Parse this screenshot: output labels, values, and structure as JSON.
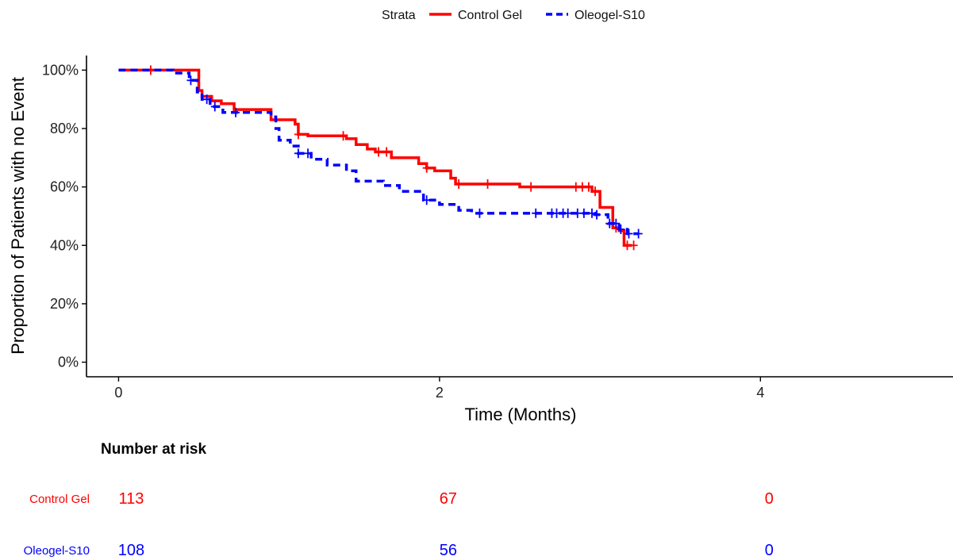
{
  "chart_data": {
    "type": "line",
    "subtype": "kaplan-meier step curve",
    "xlabel": "Time (Months)",
    "ylabel": "Proportion of Patients with no Event",
    "xlim": [
      -0.2,
      5.2
    ],
    "ylim": [
      -0.05,
      1.05
    ],
    "x_ticks": [
      0,
      2,
      4
    ],
    "x_tick_labels": [
      "0",
      "2",
      "4"
    ],
    "y_ticks": [
      0,
      0.2,
      0.4,
      0.6,
      0.8,
      1.0
    ],
    "y_tick_labels": [
      "0%",
      "20%",
      "40%",
      "60%",
      "80%",
      "100%"
    ],
    "grid": false,
    "legend": {
      "position": "top",
      "title": "Strata"
    },
    "series": [
      {
        "name": "Control Gel",
        "color": "#ff0000",
        "line_style": "solid",
        "steps": [
          [
            0,
            1.0
          ],
          [
            0.5,
            0.93
          ],
          [
            0.52,
            0.91
          ],
          [
            0.58,
            0.895
          ],
          [
            0.64,
            0.885
          ],
          [
            0.72,
            0.865
          ],
          [
            0.95,
            0.83
          ],
          [
            1.1,
            0.815
          ],
          [
            1.12,
            0.78
          ],
          [
            1.18,
            0.775
          ],
          [
            1.42,
            0.765
          ],
          [
            1.48,
            0.745
          ],
          [
            1.55,
            0.73
          ],
          [
            1.6,
            0.72
          ],
          [
            1.7,
            0.7
          ],
          [
            1.87,
            0.68
          ],
          [
            1.92,
            0.665
          ],
          [
            1.97,
            0.655
          ],
          [
            2.07,
            0.63
          ],
          [
            2.1,
            0.61
          ],
          [
            2.5,
            0.6
          ],
          [
            2.95,
            0.585
          ],
          [
            3.0,
            0.53
          ],
          [
            3.08,
            0.46
          ],
          [
            3.12,
            0.45
          ],
          [
            3.15,
            0.4
          ],
          [
            3.2,
            0.4
          ]
        ],
        "censor_x": [
          0.2,
          1.12,
          1.4,
          1.62,
          1.67,
          1.92,
          2.12,
          2.3,
          2.57,
          2.85,
          2.89,
          2.93,
          2.97,
          3.1,
          3.17,
          3.21
        ]
      },
      {
        "name": "Oleogel-S10",
        "color": "#0000ff",
        "line_style": "dashed",
        "steps": [
          [
            0,
            1.0
          ],
          [
            0.34,
            0.99
          ],
          [
            0.44,
            0.965
          ],
          [
            0.49,
            0.925
          ],
          [
            0.52,
            0.9
          ],
          [
            0.57,
            0.875
          ],
          [
            0.65,
            0.855
          ],
          [
            0.95,
            0.84
          ],
          [
            0.98,
            0.8
          ],
          [
            1.0,
            0.76
          ],
          [
            1.07,
            0.74
          ],
          [
            1.12,
            0.715
          ],
          [
            1.2,
            0.695
          ],
          [
            1.3,
            0.675
          ],
          [
            1.42,
            0.655
          ],
          [
            1.48,
            0.62
          ],
          [
            1.65,
            0.605
          ],
          [
            1.75,
            0.585
          ],
          [
            1.9,
            0.555
          ],
          [
            2.0,
            0.54
          ],
          [
            2.12,
            0.52
          ],
          [
            2.2,
            0.51
          ],
          [
            2.97,
            0.505
          ],
          [
            3.05,
            0.475
          ],
          [
            3.12,
            0.455
          ],
          [
            3.17,
            0.44
          ],
          [
            3.24,
            0.44
          ]
        ],
        "censor_x": [
          0.45,
          0.55,
          0.6,
          0.73,
          1.12,
          1.18,
          1.92,
          2.25,
          2.6,
          2.7,
          2.73,
          2.77,
          2.8,
          2.86,
          2.9,
          2.95,
          2.98,
          3.06,
          3.1,
          3.13,
          3.18,
          3.24
        ]
      }
    ],
    "risk_table": {
      "title": "Number at risk",
      "times": [
        0,
        2,
        4
      ],
      "rows": [
        {
          "name": "Control Gel",
          "color": "#ff0000",
          "counts": [
            "113",
            "67",
            "0"
          ]
        },
        {
          "name": "Oleogel-S10",
          "color": "#0000ff",
          "counts": [
            "108",
            "56",
            "0"
          ]
        }
      ]
    }
  }
}
